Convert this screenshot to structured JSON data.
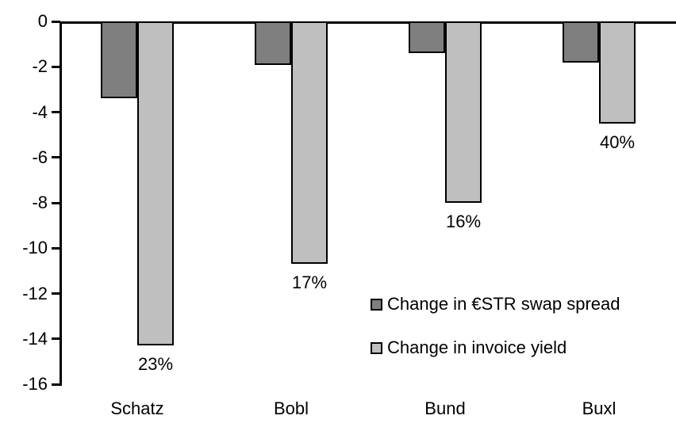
{
  "chart_data": {
    "type": "bar",
    "title": "",
    "categories": [
      "Schatz",
      "Bobl",
      "Bund",
      "Buxl"
    ],
    "series": [
      {
        "name": "Change in €STR swap spread",
        "color": "#7F7F7F",
        "values": [
          -3.3,
          -1.8,
          -1.3,
          -1.7
        ]
      },
      {
        "name": "Change in invoice yield",
        "color": "#BFBFBF",
        "values": [
          -14.2,
          -10.6,
          -7.9,
          -4.4
        ]
      }
    ],
    "data_labels": {
      "on_series": "Change in invoice yield",
      "values": [
        "23%",
        "17%",
        "16%",
        "40%"
      ]
    },
    "y_axis": {
      "min": -16,
      "max": 0,
      "tick_step": 2,
      "tick_labels": [
        "0",
        "-2",
        "-4",
        "-6",
        "-8",
        "-10",
        "-12",
        "-14",
        "-16"
      ]
    },
    "legend": {
      "position": "inside-bottom-right"
    },
    "grid": false,
    "colors": {
      "bar_border": "#000000",
      "axis": "#000000",
      "text": "#000000",
      "background": "#FFFFFF"
    }
  }
}
